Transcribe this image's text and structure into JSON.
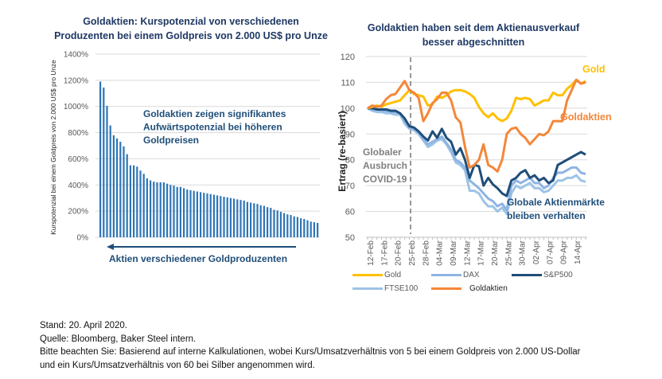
{
  "chart_data": [
    {
      "type": "bar",
      "title": "Goldaktien: Kurspotenzial von verschiedenen Produzenten bei einem Goldpreis von 2.000 US$ pro Unze",
      "title_lines": [
        "Goldaktien: Kurspotenzial  von verschiedenen",
        "Produzenten  bei einem Goldpreis von 2.000 US$ pro Unze"
      ],
      "ylabel": "Kurspotenzial bei einem Goldpreis von 2.000 US$ pro Unze",
      "xlabel": "Aktien verschiedener Goldproduzenten",
      "ylim": [
        0,
        1400
      ],
      "yticks": [
        0,
        200,
        400,
        600,
        800,
        1000,
        1200,
        1400
      ],
      "ytick_labels": [
        "0%",
        "200%",
        "400%",
        "600%",
        "800%",
        "1000%",
        "1200%",
        "1400%"
      ],
      "grid": true,
      "annotation_lines": [
        "Goldaktien  zeigen signifikantes",
        "Aufwärtspotenzial  bei höheren",
        "Goldpreisen"
      ],
      "bar_color": "#2e75b6",
      "values": [
        1190,
        1145,
        1005,
        855,
        780,
        755,
        730,
        695,
        635,
        550,
        550,
        540,
        510,
        485,
        450,
        435,
        425,
        420,
        420,
        420,
        410,
        400,
        395,
        385,
        385,
        375,
        365,
        360,
        355,
        350,
        345,
        340,
        335,
        330,
        325,
        320,
        315,
        310,
        305,
        300,
        295,
        290,
        285,
        280,
        270,
        265,
        260,
        255,
        245,
        240,
        230,
        225,
        210,
        205,
        195,
        185,
        175,
        170,
        160,
        155,
        145,
        140,
        130,
        120,
        115,
        110
      ]
    },
    {
      "type": "line",
      "title": "Goldaktien haben seit dem Aktienausverkauf besser abgeschnitten",
      "title_lines": [
        "Goldaktien  haben seit dem Aktienausverkauf",
        "besser abgeschnitten"
      ],
      "ylabel": "Ertrag (re-basiert)",
      "ylim": [
        50,
        120
      ],
      "yticks": [
        50,
        60,
        70,
        80,
        90,
        100,
        110,
        120
      ],
      "grid": true,
      "x_tick_labels": [
        "12-Feb",
        "17-Feb",
        "20-Feb",
        "25-Feb",
        "28-Feb",
        "04-Mar",
        "09-Mar",
        "12-Mar",
        "17-Mar",
        "20-Mar",
        "25-Mar",
        "30-Mar",
        "02-Apr",
        "07-Apr",
        "09-Apr",
        "14-Apr"
      ],
      "n_points": 48,
      "event_index": 11,
      "annotations": {
        "covid": [
          "Globaler",
          "Ausbruch",
          "COVID-19"
        ],
        "gold": "Gold",
        "goldaktien": "Goldaktien",
        "markets": [
          "Globale Aktienmärkte",
          "bleiben verhalten"
        ]
      },
      "legend_position": "bottom",
      "series": [
        {
          "name": "Gold",
          "color": "#ffc000",
          "values": [
            100,
            100.5,
            101,
            100.5,
            101.5,
            102,
            102.5,
            103,
            105,
            107,
            105.5,
            105,
            104.5,
            101,
            101.5,
            104.5,
            104,
            105,
            106.5,
            107,
            107,
            106.5,
            105.5,
            104,
            100.5,
            98,
            96.5,
            98,
            96,
            95,
            96,
            99,
            104,
            103.5,
            104,
            103.5,
            101,
            102,
            103,
            103,
            106,
            105,
            105,
            107.5,
            109,
            111,
            109.5,
            110.5
          ]
        },
        {
          "name": "DAX",
          "color": "#8eb4e3",
          "values": [
            100,
            99.5,
            99.5,
            99,
            99,
            98.5,
            98.5,
            98,
            95,
            92.5,
            92,
            90.5,
            88,
            86,
            87,
            88,
            89,
            86.5,
            84,
            80,
            79,
            77,
            72,
            70.5,
            69,
            67,
            65,
            64,
            62,
            63,
            60.5,
            70,
            72,
            71,
            72,
            73,
            71,
            71,
            69,
            70,
            73,
            75,
            75,
            76,
            77,
            77,
            75,
            74.5
          ]
        },
        {
          "name": "S&P500",
          "color": "#1f4e79",
          "values": [
            100,
            100,
            99.5,
            99.5,
            99.5,
            99,
            99,
            98,
            96,
            93,
            92.5,
            91,
            89,
            87.5,
            91,
            88.5,
            92,
            88.5,
            87,
            82,
            84.5,
            80,
            73,
            78,
            77.5,
            70,
            73,
            70.5,
            69,
            67,
            66,
            72,
            73,
            75,
            76,
            73,
            74,
            72,
            73,
            71,
            72,
            78,
            79,
            80,
            81,
            82,
            83,
            82
          ]
        },
        {
          "name": "FTSE100",
          "color": "#9dc3e6",
          "values": [
            100,
            99,
            98.5,
            98.5,
            98,
            98,
            97.5,
            97.5,
            94,
            92,
            91.5,
            90,
            87.5,
            85,
            86,
            87.5,
            88,
            86,
            83,
            79,
            78,
            76,
            68,
            68,
            67,
            64,
            62,
            62,
            60,
            61.5,
            59,
            67,
            70,
            69,
            70,
            71,
            69,
            69,
            67.5,
            68,
            70,
            72,
            72,
            73,
            73,
            74,
            72,
            71.5
          ]
        },
        {
          "name": "Goldaktien",
          "color": "#f4873a",
          "values": [
            100,
            101,
            100.5,
            101,
            103.5,
            105,
            105.5,
            108,
            110.5,
            107,
            106,
            104,
            95,
            98,
            102,
            103.5,
            106,
            106,
            103,
            96.5,
            94.5,
            85,
            77,
            78,
            80,
            86,
            78,
            77,
            75.5,
            80,
            90,
            92,
            92.5,
            90,
            88.5,
            86,
            88,
            90,
            89.5,
            91,
            95,
            95,
            95,
            103,
            107,
            111,
            109.5,
            110
          ]
        }
      ]
    }
  ],
  "footer": {
    "lines": [
      "Stand: 20. April 2020.",
      "Quelle: Bloomberg, Baker Steel intern.",
      "Bitte beachten Sie: Basierend auf interne Kalkulationen, wobei Kurs/Umsatzverhältnis von 5 bei einem Goldpreis von 2.000 US-Dollar",
      "und ein Kurs/Umsatzverhältnis von 60 bei Silber angenommen wird."
    ]
  }
}
